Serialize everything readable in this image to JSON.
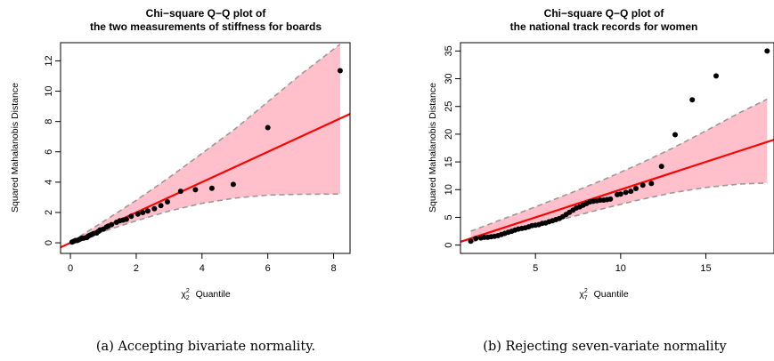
{
  "chart_data": [
    {
      "type": "scatter",
      "title_lines": [
        "Chi−square Q−Q plot of",
        "the two measurements of stiffness for boards"
      ],
      "xlabel_symbol": "χ",
      "xlabel_sup": "2",
      "xlabel_sub": "2",
      "xlabel_text": "Quantile",
      "ylabel": "Squared Mahalanobis Distance",
      "xlim": [
        -0.3,
        8.5
      ],
      "ylim": [
        -0.7,
        13.2
      ],
      "xticks": [
        0,
        2,
        4,
        6,
        8
      ],
      "yticks": [
        0,
        2,
        4,
        6,
        8,
        10,
        12
      ],
      "reference_line": {
        "slope": 1,
        "intercept": 0,
        "color": "#ff0000"
      },
      "band": {
        "color": "#ffc0cb",
        "x": [
          0.05,
          1,
          2,
          3,
          4,
          5,
          6,
          7,
          8.2
        ],
        "upper": [
          0.1,
          1.4,
          2.8,
          4.3,
          5.9,
          7.5,
          9.3,
          11.1,
          13.1
        ],
        "lower": [
          0.0,
          0.75,
          1.45,
          2.1,
          2.6,
          2.95,
          3.15,
          3.2,
          3.22
        ]
      },
      "points": {
        "x": [
          0.05,
          0.1,
          0.15,
          0.2,
          0.25,
          0.3,
          0.35,
          0.4,
          0.5,
          0.55,
          0.6,
          0.65,
          0.7,
          0.8,
          0.85,
          0.9,
          1.0,
          1.1,
          1.15,
          1.25,
          1.4,
          1.5,
          1.6,
          1.7,
          1.85,
          2.05,
          2.2,
          2.35,
          2.55,
          2.75,
          2.95,
          3.35,
          3.8,
          4.3,
          4.95,
          6.0,
          8.2
        ],
        "y": [
          0.05,
          0.1,
          0.15,
          0.15,
          0.2,
          0.25,
          0.3,
          0.3,
          0.35,
          0.45,
          0.5,
          0.55,
          0.6,
          0.65,
          0.75,
          0.85,
          0.9,
          1.05,
          1.1,
          1.2,
          1.35,
          1.45,
          1.5,
          1.55,
          1.75,
          1.9,
          2.0,
          2.1,
          2.25,
          2.45,
          2.7,
          3.4,
          3.5,
          3.6,
          3.85,
          7.6,
          11.35
        ]
      }
    },
    {
      "type": "scatter",
      "title_lines": [
        "Chi−square Q−Q plot of",
        "the national track records for women"
      ],
      "xlabel_symbol": "χ",
      "xlabel_sup": "2",
      "xlabel_sub": "7",
      "xlabel_text": "Quantile",
      "ylabel": "Squared Mahalanobis Distance",
      "xlim": [
        0.6,
        19.0
      ],
      "ylim": [
        -1.5,
        36.5
      ],
      "xticks": [
        5,
        10,
        15
      ],
      "yticks": [
        0,
        5,
        10,
        15,
        20,
        25,
        30,
        35
      ],
      "reference_line": {
        "slope": 1,
        "intercept": 0,
        "color": "#ff0000"
      },
      "band": {
        "color": "#ffc0cb",
        "x": [
          1.2,
          3,
          5,
          7,
          9,
          11,
          13,
          15,
          17,
          18.6
        ],
        "upper": [
          2.5,
          4.6,
          6.9,
          9.3,
          11.8,
          14.5,
          17.4,
          20.6,
          23.9,
          26.3
        ],
        "lower": [
          0.5,
          1.9,
          3.5,
          5.0,
          6.6,
          8.1,
          9.4,
          10.4,
          11.0,
          11.2
        ]
      },
      "points": {
        "x": [
          1.2,
          1.5,
          1.8,
          2.0,
          2.2,
          2.4,
          2.6,
          2.8,
          3.0,
          3.2,
          3.4,
          3.6,
          3.8,
          4.0,
          4.2,
          4.4,
          4.6,
          4.8,
          5.0,
          5.2,
          5.4,
          5.6,
          5.8,
          6.0,
          6.2,
          6.4,
          6.6,
          6.8,
          7.0,
          7.2,
          7.4,
          7.6,
          7.8,
          8.0,
          8.2,
          8.4,
          8.6,
          8.8,
          9.0,
          9.2,
          9.4,
          9.8,
          10.0,
          10.3,
          10.6,
          10.9,
          11.3,
          11.8,
          12.4,
          13.2,
          14.2,
          15.6,
          18.6
        ],
        "y": [
          0.7,
          1.2,
          1.3,
          1.4,
          1.4,
          1.5,
          1.6,
          1.7,
          1.9,
          2.1,
          2.3,
          2.5,
          2.7,
          2.9,
          3.0,
          3.1,
          3.3,
          3.5,
          3.6,
          3.7,
          3.9,
          4.0,
          4.2,
          4.4,
          4.6,
          4.8,
          5.1,
          5.5,
          5.9,
          6.3,
          6.7,
          6.9,
          7.2,
          7.5,
          7.8,
          7.9,
          8.0,
          8.1,
          8.1,
          8.2,
          8.3,
          9.1,
          9.2,
          9.5,
          9.7,
          10.2,
          10.8,
          11.1,
          14.2,
          19.9,
          26.2,
          30.5,
          35.0
        ]
      }
    }
  ],
  "captions": [
    "(a) Accepting bivariate normality.",
    "(b) Rejecting seven-variate normality"
  ]
}
